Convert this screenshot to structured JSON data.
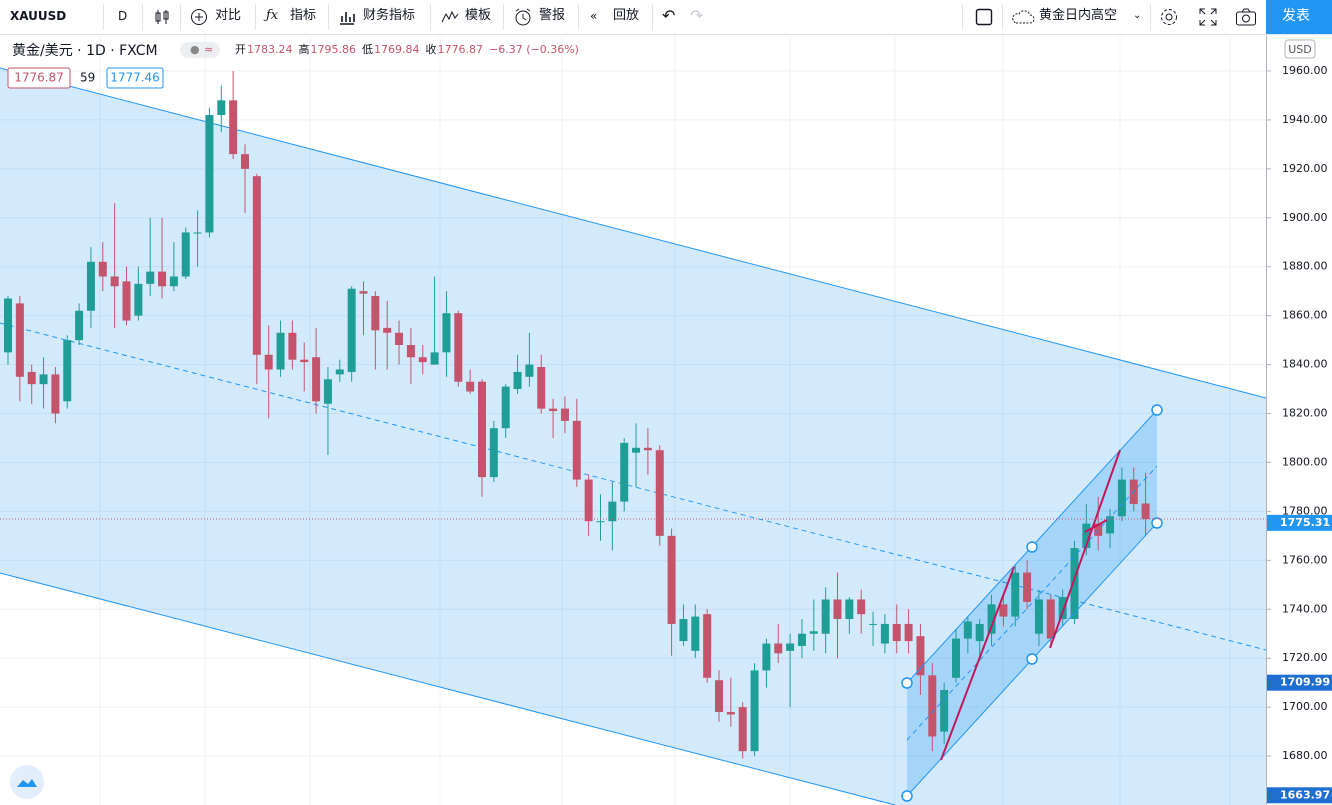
{
  "toolbar": {
    "symbol": "XAUUSD",
    "interval": "D",
    "items": [
      "对比",
      "指标",
      "财务指标",
      "模板",
      "警报",
      "回放"
    ],
    "layout_name": "黄金日内高空",
    "publish": "发表"
  },
  "legend": {
    "title": "黄金/美元 · 1D · FXCM",
    "open_label": "开",
    "high_label": "高",
    "low_label": "低",
    "close_label": "收",
    "change": "−6.37 (−0.36%)",
    "spread": "59",
    "ask": "1777.46"
  },
  "chart_data": {
    "type": "candlestick",
    "currency": "USD",
    "open": [
      1845,
      1865,
      1837,
      1832,
      1836,
      1825,
      1850,
      1862,
      1882,
      1876,
      1874,
      1860,
      1873,
      1878,
      1872,
      1876,
      1894,
      1894,
      1942,
      1948,
      1926,
      1917,
      1844,
      1838,
      1853,
      1842,
      1843,
      1824,
      1836,
      1837,
      1870,
      1868,
      1855,
      1853,
      1848,
      1843,
      1840,
      1845,
      1861,
      1833,
      1833,
      1794,
      1814,
      1830,
      1835,
      1839,
      1822,
      1822,
      1817,
      1793,
      1776,
      1776,
      1784,
      1804,
      1806,
      1805,
      1770,
      1727,
      1723,
      1738,
      1711,
      1698,
      1700,
      1682,
      1715,
      1726,
      1723,
      1725,
      1730,
      1730,
      1744,
      1736,
      1744,
      1734,
      1726,
      1734,
      1734,
      1729,
      1713,
      1690,
      1712,
      1728,
      1727,
      1730,
      1742,
      1737,
      1755,
      1730,
      1744,
      1736,
      1736,
      1765,
      1775,
      1771,
      1778,
      1793,
      1783.24
    ],
    "high": [
      1868,
      1868,
      1840,
      1843,
      1839,
      1852,
      1865,
      1888,
      1890,
      1906,
      1880,
      1880,
      1900,
      1900,
      1890,
      1896,
      1903,
      1945,
      1954,
      1960,
      1930,
      1918,
      1856,
      1858,
      1858,
      1849,
      1855,
      1839,
      1842,
      1872,
      1874,
      1870,
      1866,
      1858,
      1855,
      1848,
      1876,
      1870,
      1862,
      1838,
      1834,
      1817,
      1832,
      1844,
      1853,
      1844,
      1826,
      1827,
      1826,
      1795,
      1787,
      1792,
      1810,
      1816,
      1814,
      1807,
      1773,
      1742,
      1742,
      1740,
      1715,
      1712,
      1702,
      1718,
      1728,
      1734,
      1730,
      1736,
      1744,
      1749,
      1755,
      1745,
      1748,
      1739,
      1738,
      1742,
      1740,
      1734,
      1718,
      1710,
      1732,
      1737,
      1736,
      1746,
      1746,
      1758,
      1760,
      1748,
      1746,
      1748,
      1768,
      1783,
      1786,
      1781,
      1798,
      1798,
      1795.86
    ],
    "low": [
      1840,
      1825,
      1824,
      1822,
      1816,
      1822,
      1848,
      1855,
      1870,
      1855,
      1856,
      1858,
      1868,
      1867,
      1870,
      1875,
      1880,
      1892,
      1935,
      1924,
      1902,
      1832,
      1818,
      1835,
      1838,
      1829,
      1820,
      1803,
      1833,
      1833,
      1852,
      1838,
      1838,
      1840,
      1832,
      1836,
      1840,
      1835,
      1831,
      1828,
      1786,
      1792,
      1810,
      1828,
      1831,
      1820,
      1810,
      1812,
      1790,
      1770,
      1768,
      1764,
      1780,
      1790,
      1795,
      1766,
      1721,
      1725,
      1720,
      1710,
      1694,
      1692,
      1679,
      1680,
      1708,
      1718,
      1700,
      1720,
      1723,
      1722,
      1720,
      1730,
      1730,
      1725,
      1722,
      1722,
      1722,
      1705,
      1682,
      1685,
      1710,
      1722,
      1720,
      1725,
      1733,
      1733,
      1740,
      1725,
      1726,
      1733,
      1734,
      1762,
      1764,
      1765,
      1776,
      1780,
      1769.84
    ],
    "close": [
      1867,
      1835,
      1832,
      1836,
      1820,
      1850,
      1862,
      1882,
      1876,
      1872,
      1858,
      1873,
      1878,
      1872,
      1876,
      1894,
      1894,
      1942,
      1948,
      1926,
      1920,
      1844,
      1838,
      1853,
      1842,
      1841,
      1825,
      1834,
      1838,
      1871,
      1869,
      1854,
      1853,
      1848,
      1843,
      1841,
      1845,
      1861,
      1833,
      1829,
      1794,
      1814,
      1831,
      1837,
      1840,
      1822,
      1821,
      1817,
      1793,
      1776,
      1776,
      1784,
      1808,
      1806,
      1805,
      1770,
      1734,
      1736,
      1737,
      1712,
      1698,
      1697,
      1682,
      1715,
      1726,
      1722,
      1726,
      1730,
      1731,
      1744,
      1736,
      1744,
      1738,
      1734,
      1734,
      1727,
      1727,
      1713,
      1688,
      1707,
      1728,
      1735,
      1734,
      1742,
      1737,
      1755,
      1743,
      1744,
      1728,
      1745,
      1765,
      1775,
      1770,
      1778,
      1793,
      1783,
      1776.87
    ],
    "up_color": "#1f9e97",
    "down_color": "#c4546b",
    "ylim": [
      1660,
      1974.7
    ],
    "yticks": [
      {
        "value": 1680,
        "label": "1680.00"
      },
      {
        "value": 1700,
        "label": "1700.00"
      },
      {
        "value": 1720,
        "label": "1720.00"
      },
      {
        "value": 1740,
        "label": "1740.00"
      },
      {
        "value": 1760,
        "label": "1760.00"
      },
      {
        "value": 1780,
        "label": "1780.00"
      },
      {
        "value": 1800,
        "label": "1800.00"
      },
      {
        "value": 1820,
        "label": "1820.00"
      },
      {
        "value": 1840,
        "label": "1840.00"
      },
      {
        "value": 1860,
        "label": "1860.00"
      },
      {
        "value": 1880,
        "label": "1880.00"
      },
      {
        "value": 1900,
        "label": "1900.00"
      },
      {
        "value": 1920,
        "label": "1920.00"
      },
      {
        "value": 1940,
        "label": "1940.00"
      },
      {
        "value": 1960,
        "label": "1960.00"
      }
    ],
    "price_labels": [
      {
        "value": 1775.31,
        "label": "1775.31",
        "color": "#2196f3"
      },
      {
        "value": 1709.99,
        "label": "1709.99",
        "color": "#1e6fd0"
      },
      {
        "value": 1663.97,
        "label": "1663.97",
        "color": "#1e6fd0"
      }
    ],
    "grid": true
  }
}
